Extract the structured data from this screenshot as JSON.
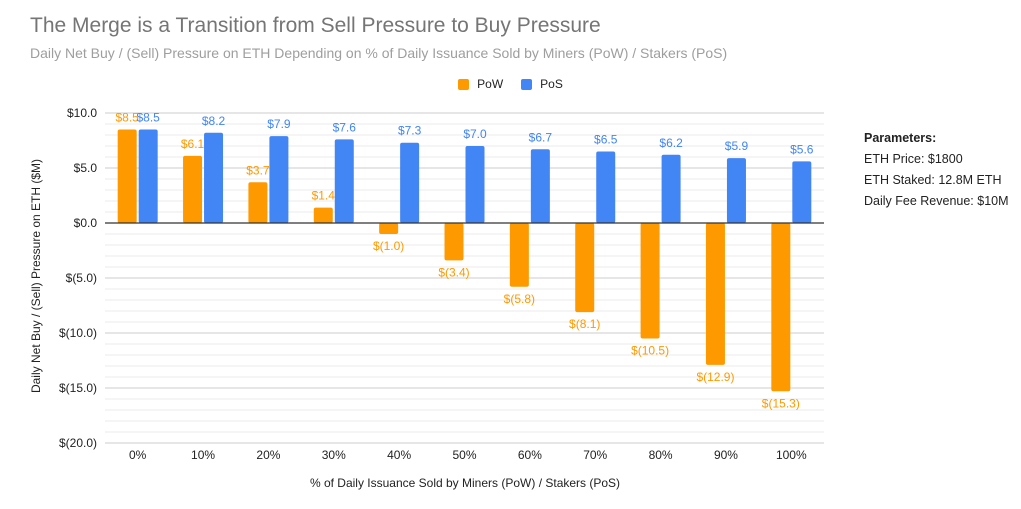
{
  "chart_data": {
    "type": "bar",
    "title": "The Merge is a Transition from Sell Pressure to Buy Pressure",
    "subtitle": "Daily Net Buy / (Sell) Pressure on ETH Depending on % of Daily Issuance Sold by Miners (PoW) / Stakers (PoS)",
    "xlabel": "% of Daily Issuance Sold by Miners (PoW) / Stakers (PoS)",
    "ylabel": "Daily Net Buy / (Sell) Pressure on ETH ($M)",
    "categories": [
      "0%",
      "10%",
      "20%",
      "30%",
      "40%",
      "50%",
      "60%",
      "70%",
      "80%",
      "90%",
      "100%"
    ],
    "series": [
      {
        "name": "PoW",
        "color": "#ff9900",
        "values": [
          8.5,
          6.1,
          3.7,
          1.4,
          -1.0,
          -3.4,
          -5.8,
          -8.1,
          -10.5,
          -12.9,
          -15.3
        ],
        "labels": [
          "$8.5",
          "$6.1",
          "$3.7",
          "$1.4",
          "$(1.0)",
          "$(3.4)",
          "$(5.8)",
          "$(8.1)",
          "$(10.5)",
          "$(12.9)",
          "$(15.3)"
        ]
      },
      {
        "name": "PoS",
        "color": "#4285f4",
        "values": [
          8.5,
          8.2,
          7.9,
          7.6,
          7.3,
          7.0,
          6.7,
          6.5,
          6.2,
          5.9,
          5.6
        ],
        "labels": [
          "$8.5",
          "$8.2",
          "$7.9",
          "$7.6",
          "$7.3",
          "$7.0",
          "$6.7",
          "$6.5",
          "$6.2",
          "$5.9",
          "$5.6"
        ]
      }
    ],
    "ylim": [
      -20,
      10
    ],
    "yticks": [
      10,
      5,
      0,
      -5,
      -10,
      -15,
      -20
    ],
    "ytick_labels": [
      "$10.0",
      "$5.0",
      "$0.0",
      "$(5.0)",
      "$(10.0)",
      "$(15.0)",
      "$(20.0)"
    ],
    "minor_grid_step": 1,
    "grid": true,
    "legend": {
      "position": "top-center",
      "entries": [
        "PoW",
        "PoS"
      ]
    }
  },
  "parameters": {
    "heading": "Parameters:",
    "lines": [
      "ETH Price: $1800",
      "ETH Staked: 12.8M ETH",
      "Daily Fee Revenue: $10M"
    ]
  }
}
